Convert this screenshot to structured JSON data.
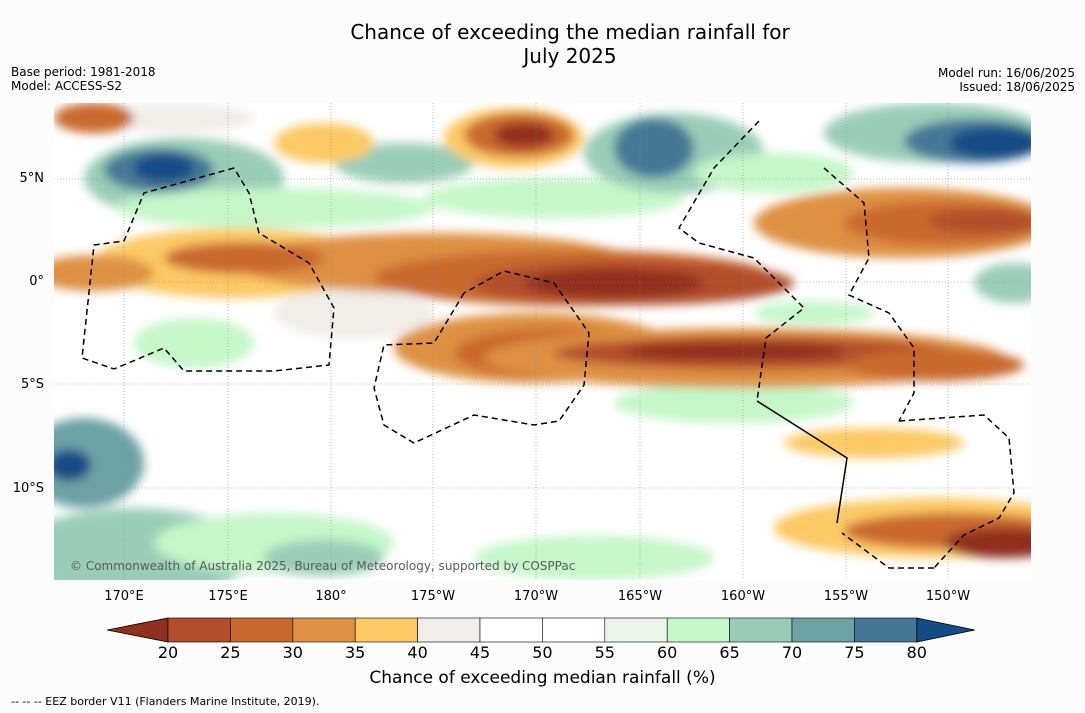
{
  "header": {
    "title_line1": "Chance of exceeding the median rainfall for",
    "title_line2": "July 2025",
    "base_period": "Base period: 1981-2018",
    "model": "Model: ACCESS-S2",
    "model_run": "Model run: 16/06/2025",
    "issued": "Issued: 18/06/2025"
  },
  "map": {
    "lat_labels": [
      "5°N",
      "0°",
      "5°S",
      "10°S"
    ],
    "lon_labels": [
      "170°E",
      "175°E",
      "180°",
      "175°W",
      "170°W",
      "165°W",
      "160°W",
      "155°W",
      "150°W"
    ],
    "copyright": "© Commonwealth of Australia 2025, Bureau of Meteorology, supported by COSPPac"
  },
  "legend": {
    "title": "Chance of exceeding median rainfall (%)",
    "ticks": [
      "20",
      "25",
      "30",
      "35",
      "40",
      "45",
      "50",
      "55",
      "60",
      "65",
      "70",
      "75",
      "80"
    ],
    "colors": [
      "#8f2f1c",
      "#b24e2b",
      "#c9692f",
      "#de9142",
      "#fcc965",
      "#f1ede8",
      "#ffffff",
      "#ffffff",
      "#e8f5e8",
      "#c5f7c9",
      "#9acdb7",
      "#6da2a5",
      "#447896",
      "#134b86"
    ]
  },
  "footnote": "--  --  -- EEZ border V11 (Flanders Marine Institute, 2019)."
}
